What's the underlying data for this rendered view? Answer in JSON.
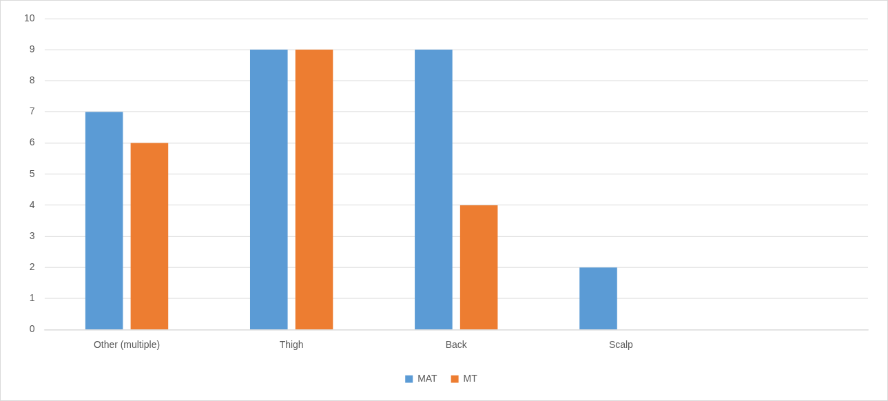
{
  "chart_data": {
    "type": "bar",
    "categories": [
      "Other (multiple)",
      "Thigh",
      "Back",
      "Scalp",
      null
    ],
    "series": [
      {
        "name": "MAT",
        "color": "#5b9bd5",
        "values": [
          7,
          9,
          9,
          2,
          null
        ]
      },
      {
        "name": "MT",
        "color": "#ed7d31",
        "values": [
          6,
          9,
          4,
          0,
          null
        ]
      }
    ],
    "ylim": [
      0,
      10
    ],
    "yticks": [
      0,
      1,
      2,
      3,
      4,
      5,
      6,
      7,
      8,
      9,
      10
    ],
    "grid": "y",
    "legend": "bottom"
  }
}
